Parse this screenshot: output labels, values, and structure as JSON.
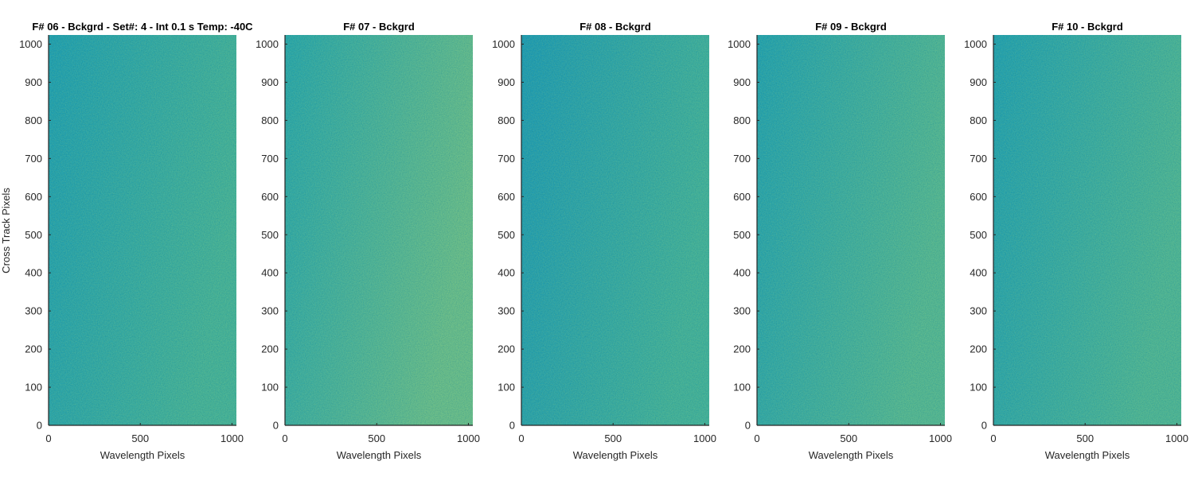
{
  "figure": {
    "ylabel": "Cross Track Pixels"
  },
  "chart_data": [
    {
      "type": "heatmap",
      "title": "F# 06 - Bckgrd - Set#: 4 - Int 0.1 s Temp: -40C",
      "xlabel": "Wavelength Pixels",
      "ylabel": "Cross Track Pixels",
      "xlim": [
        0,
        1024
      ],
      "ylim": [
        0,
        1024
      ],
      "xticks": [
        0,
        500,
        1000
      ],
      "yticks": [
        0,
        100,
        200,
        300,
        400,
        500,
        600,
        700,
        800,
        900,
        1000
      ],
      "colormap": "parula",
      "gradient": {
        "from": "#1fa0b4",
        "to": "#47b49a"
      },
      "grid": false
    },
    {
      "type": "heatmap",
      "title": "F# 07 - Bckgrd",
      "xlabel": "Wavelength Pixels",
      "ylabel": "",
      "xlim": [
        0,
        1024
      ],
      "ylim": [
        0,
        1024
      ],
      "xticks": [
        0,
        500,
        1000
      ],
      "yticks": [
        0,
        100,
        200,
        300,
        400,
        500,
        600,
        700,
        800,
        900,
        1000
      ],
      "colormap": "parula",
      "gradient": {
        "from": "#28a7ad",
        "to": "#6cbf8c"
      },
      "grid": false
    },
    {
      "type": "heatmap",
      "title": "F# 08 - Bckgrd",
      "xlabel": "Wavelength Pixels",
      "ylabel": "",
      "xlim": [
        0,
        1024
      ],
      "ylim": [
        0,
        1024
      ],
      "xticks": [
        0,
        500,
        1000
      ],
      "yticks": [
        0,
        100,
        200,
        300,
        400,
        500,
        600,
        700,
        800,
        900,
        1000
      ],
      "colormap": "parula",
      "gradient": {
        "from": "#1d9bb6",
        "to": "#44b39c"
      },
      "grid": false
    },
    {
      "type": "heatmap",
      "title": "F# 09 - Bckgrd",
      "xlabel": "Wavelength Pixels",
      "ylabel": "",
      "xlim": [
        0,
        1024
      ],
      "ylim": [
        0,
        1024
      ],
      "xticks": [
        0,
        500,
        1000
      ],
      "yticks": [
        0,
        100,
        200,
        300,
        400,
        500,
        600,
        700,
        800,
        900,
        1000
      ],
      "colormap": "parula",
      "gradient": {
        "from": "#22a2b2",
        "to": "#57b994"
      },
      "grid": false
    },
    {
      "type": "heatmap",
      "title": "F# 10 - Bckgrd",
      "xlabel": "Wavelength Pixels",
      "ylabel": "",
      "xlim": [
        0,
        1024
      ],
      "ylim": [
        0,
        1024
      ],
      "xticks": [
        0,
        500,
        1000
      ],
      "yticks": [
        0,
        100,
        200,
        300,
        400,
        500,
        600,
        700,
        800,
        900,
        1000
      ],
      "colormap": "parula",
      "gradient": {
        "from": "#21a1b3",
        "to": "#50b797"
      },
      "grid": false
    }
  ]
}
